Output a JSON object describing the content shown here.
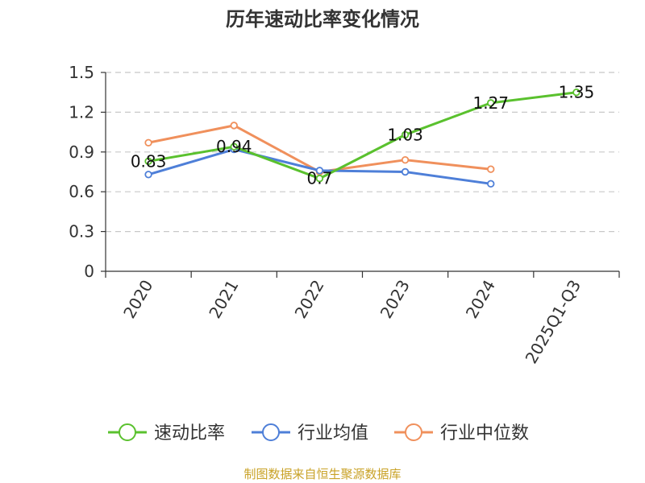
{
  "chart_data": {
    "type": "line",
    "title": "历年速动比率变化情况",
    "categories": [
      "2020",
      "2021",
      "2022",
      "2023",
      "2024",
      "2025Q1-Q3"
    ],
    "ylim": [
      0,
      1.5
    ],
    "yticks": [
      "0",
      "0.3",
      "0.6",
      "0.9",
      "1.2",
      "1.5"
    ],
    "grid": true,
    "legend_position": "bottom",
    "series": [
      {
        "name": "速动比率",
        "color": "#5ac12e",
        "values": [
          0.83,
          0.94,
          0.7,
          1.03,
          1.27,
          1.35
        ],
        "labels": [
          "0.83",
          "0.94",
          "0.7",
          "1.03",
          "1.27",
          "1.35"
        ]
      },
      {
        "name": "行业均值",
        "color": "#4e7fd8",
        "values": [
          0.73,
          0.92,
          0.76,
          0.75,
          0.66,
          null
        ]
      },
      {
        "name": "行业中位数",
        "color": "#f0905c",
        "values": [
          0.97,
          1.1,
          0.75,
          0.84,
          0.77,
          null
        ]
      }
    ],
    "source": "制图数据来自恒生聚源数据库"
  }
}
